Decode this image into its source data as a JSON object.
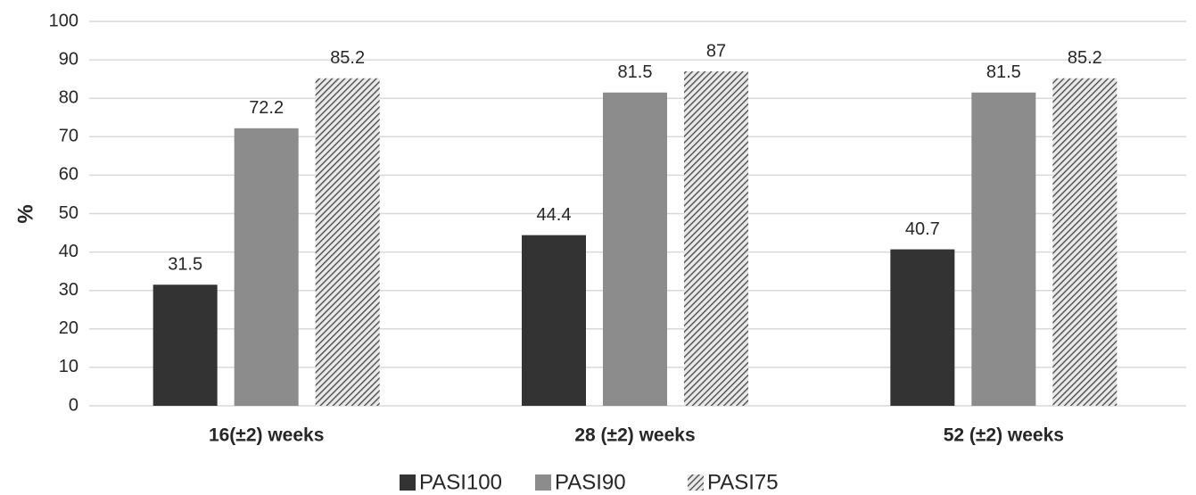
{
  "chart_data": {
    "type": "bar",
    "y_label": "%",
    "categories": [
      "16(±2) weeks",
      "28 (±2) weeks",
      "52 (±2) weeks"
    ],
    "series": [
      {
        "name": "PASI100",
        "color": "#333333",
        "values": [
          31.5,
          44.4,
          40.7
        ]
      },
      {
        "name": "PASI90",
        "color": "#8c8c8c",
        "values": [
          72.2,
          81.5,
          81.5
        ]
      },
      {
        "name": "PASI75",
        "color": "#555555",
        "hatch": true,
        "values": [
          85.2,
          87,
          85.2
        ]
      }
    ],
    "ylim": [
      0,
      100
    ],
    "yticks": [
      0,
      10,
      20,
      30,
      40,
      50,
      60,
      70,
      80,
      90,
      100
    ],
    "grid": true,
    "legend": "bottom"
  }
}
